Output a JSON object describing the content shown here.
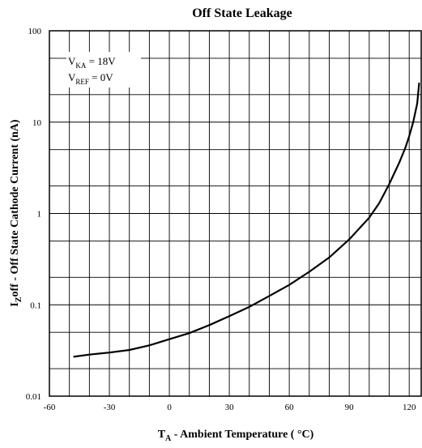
{
  "chart_data": {
    "type": "line",
    "title": "Off State Leakage",
    "xlabel": {
      "main": "T",
      "sub": "A",
      "rest": " - Ambient Temperature ( °C)"
    },
    "ylabel": {
      "main": "I",
      "sub": "Z",
      "rest": "off - Off State Cathode Current (nA)"
    },
    "x_ticks": [
      -60,
      -30,
      0,
      30,
      60,
      90,
      120
    ],
    "y_ticks": [
      {
        "value": 0.01,
        "label": "0.01"
      },
      {
        "value": 0.1,
        "label": "0.1"
      },
      {
        "value": 1,
        "label": "1"
      },
      {
        "value": 10,
        "label": "10"
      },
      {
        "value": 100,
        "label": "100"
      }
    ],
    "xlim": [
      -60,
      126
    ],
    "ylim": [
      0.01,
      100
    ],
    "y_scale": "log",
    "grid": true,
    "annotation": [
      {
        "main": "V",
        "sub": "KA",
        "rest": " = 18V"
      },
      {
        "main": "V",
        "sub": "REF",
        "rest": " = 0V"
      }
    ],
    "series": [
      {
        "x": [
          -48,
          -40,
          -30,
          -20,
          -10,
          0,
          10,
          20,
          30,
          40,
          50,
          60,
          70,
          80,
          90,
          100,
          105,
          110,
          115,
          118,
          120,
          122,
          124,
          125
        ],
        "y": [
          0.027,
          0.0285,
          0.03,
          0.032,
          0.036,
          0.042,
          0.049,
          0.06,
          0.075,
          0.095,
          0.125,
          0.165,
          0.23,
          0.33,
          0.52,
          0.9,
          1.3,
          2.1,
          3.6,
          5.2,
          7.0,
          10.0,
          16.0,
          27.0
        ]
      }
    ]
  }
}
